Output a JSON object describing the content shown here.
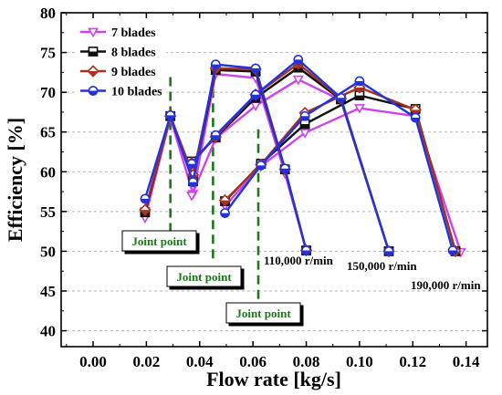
{
  "chart_data": {
    "type": "line",
    "xlabel": "Flow rate [kg/s]",
    "ylabel": "Efficiency [%]",
    "xlim": [
      -0.012,
      0.148
    ],
    "ylim": [
      38,
      80
    ],
    "x_ticks": [
      "0.00",
      "0.02",
      "0.04",
      "0.06",
      "0.08",
      "0.10",
      "0.12",
      "0.14"
    ],
    "y_ticks": [
      "40",
      "45",
      "50",
      "55",
      "60",
      "65",
      "70",
      "75",
      "80"
    ],
    "grid": "horizontal dashed",
    "legend_position": "top-left",
    "series": [
      {
        "name": "7 blades",
        "color": "#cc44ee",
        "marker": "triangle-down",
        "curves": [
          [
            [
              0.0195,
              54.2
            ],
            [
              0.029,
              66.8
            ],
            [
              0.0375,
              57.2
            ],
            [
              0.046,
              72.3
            ],
            [
              0.061,
              71.8
            ],
            [
              0.072,
              59.8
            ],
            [
              0.08,
              50.1
            ]
          ],
          [
            [
              0.037,
              57.0
            ],
            [
              0.046,
              64.2
            ],
            [
              0.061,
              68.3
            ],
            [
              0.077,
              71.6
            ],
            [
              0.093,
              69.0
            ],
            [
              0.111,
              50.0
            ]
          ],
          [
            [
              0.0495,
              55.7
            ],
            [
              0.063,
              60.7
            ],
            [
              0.0795,
              64.9
            ],
            [
              0.1,
              68.0
            ],
            [
              0.121,
              67.0
            ],
            [
              0.138,
              49.9
            ]
          ]
        ]
      },
      {
        "name": "8 blades",
        "color": "#111111",
        "marker": "square",
        "curves": [
          [
            [
              0.0195,
              54.9
            ],
            [
              0.029,
              67.0
            ],
            [
              0.0375,
              58.8
            ],
            [
              0.046,
              72.8
            ],
            [
              0.061,
              72.6
            ],
            [
              0.072,
              60.3
            ],
            [
              0.08,
              50.1
            ]
          ],
          [
            [
              0.037,
              61.3
            ],
            [
              0.046,
              64.3
            ],
            [
              0.061,
              69.3
            ],
            [
              0.077,
              73.1
            ],
            [
              0.093,
              69.1
            ],
            [
              0.111,
              50.0
            ]
          ],
          [
            [
              0.0495,
              56.3
            ],
            [
              0.063,
              61.0
            ],
            [
              0.0795,
              66.0
            ],
            [
              0.1,
              69.6
            ],
            [
              0.121,
              67.9
            ],
            [
              0.136,
              50.0
            ]
          ]
        ]
      },
      {
        "name": "9 blades",
        "color": "#a8321e",
        "marker": "diamond",
        "curves": [
          [
            [
              0.0195,
              55.2
            ],
            [
              0.029,
              67.0
            ],
            [
              0.0375,
              59.6
            ],
            [
              0.046,
              73.0
            ],
            [
              0.061,
              72.9
            ],
            [
              0.072,
              60.3
            ],
            [
              0.08,
              50.1
            ]
          ],
          [
            [
              0.037,
              61.1
            ],
            [
              0.046,
              64.4
            ],
            [
              0.061,
              69.7
            ],
            [
              0.077,
              73.6
            ],
            [
              0.093,
              69.2
            ],
            [
              0.111,
              50.0
            ]
          ],
          [
            [
              0.0495,
              56.4
            ],
            [
              0.063,
              60.9
            ],
            [
              0.0795,
              67.4
            ],
            [
              0.1,
              70.6
            ],
            [
              0.121,
              67.8
            ],
            [
              0.136,
              50.0
            ]
          ]
        ]
      },
      {
        "name": "10 blades",
        "color": "#2233dd",
        "marker": "circle",
        "curves": [
          [
            [
              0.0195,
              56.6
            ],
            [
              0.029,
              67.1
            ],
            [
              0.0375,
              58.7
            ],
            [
              0.046,
              73.5
            ],
            [
              0.061,
              73.0
            ],
            [
              0.072,
              60.4
            ],
            [
              0.08,
              50.1
            ]
          ],
          [
            [
              0.037,
              61.0
            ],
            [
              0.046,
              64.6
            ],
            [
              0.061,
              69.7
            ],
            [
              0.077,
              74.1
            ],
            [
              0.093,
              69.3
            ],
            [
              0.111,
              50.0
            ]
          ],
          [
            [
              0.0495,
              54.8
            ],
            [
              0.063,
              60.8
            ],
            [
              0.0795,
              67.0
            ],
            [
              0.1,
              71.4
            ],
            [
              0.121,
              66.8
            ],
            [
              0.135,
              50.1
            ]
          ]
        ]
      }
    ],
    "joint_lines": [
      {
        "x": 0.029,
        "y_range": [
          52.4,
          72.0
        ]
      },
      {
        "x": 0.045,
        "y_range": [
          49.1,
          71.0
        ]
      },
      {
        "x": 0.062,
        "y_range": [
          44.0,
          66.0
        ]
      }
    ],
    "joint_labels": [
      "Joint point",
      "Joint point",
      "Joint point"
    ],
    "speed_labels": [
      "110,000 r/min",
      "150,000 r/min",
      "190,000 r/min"
    ]
  }
}
